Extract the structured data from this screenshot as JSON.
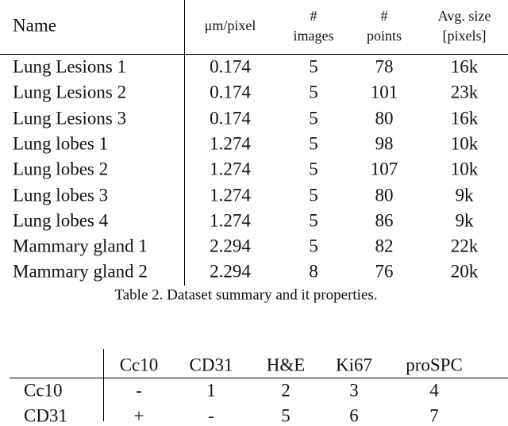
{
  "table1": {
    "header": [
      [
        "Name"
      ],
      [
        "μm/pixel"
      ],
      [
        "#",
        "images"
      ],
      [
        "#",
        "points"
      ],
      [
        "Avg. size",
        "[pixels]"
      ]
    ],
    "rows": [
      [
        "Lung Lesions 1",
        "0.174",
        "5",
        "78",
        "16k"
      ],
      [
        "Lung Lesions 2",
        "0.174",
        "5",
        "101",
        "23k"
      ],
      [
        "Lung Lesions 3",
        "0.174",
        "5",
        "80",
        "16k"
      ],
      [
        "Lung lobes 1",
        "1.274",
        "5",
        "98",
        "10k"
      ],
      [
        "Lung lobes 2",
        "1.274",
        "5",
        "107",
        "10k"
      ],
      [
        "Lung lobes 3",
        "1.274",
        "5",
        "80",
        "9k"
      ],
      [
        "Lung lobes 4",
        "1.274",
        "5",
        "86",
        "9k"
      ],
      [
        "Mammary gland 1",
        "2.294",
        "5",
        "82",
        "22k"
      ],
      [
        "Mammary gland 2",
        "2.294",
        "8",
        "76",
        "20k"
      ]
    ],
    "caption": "Table 2. Dataset summary and it properties."
  },
  "table2": {
    "header": [
      "Cc10",
      "CD31",
      "H&E",
      "Ki67",
      "proSPC"
    ],
    "rows": [
      [
        "Cc10",
        "-",
        "1",
        "2",
        "3",
        "4"
      ],
      [
        "CD31",
        "+",
        "-",
        "5",
        "6",
        "7"
      ]
    ]
  }
}
